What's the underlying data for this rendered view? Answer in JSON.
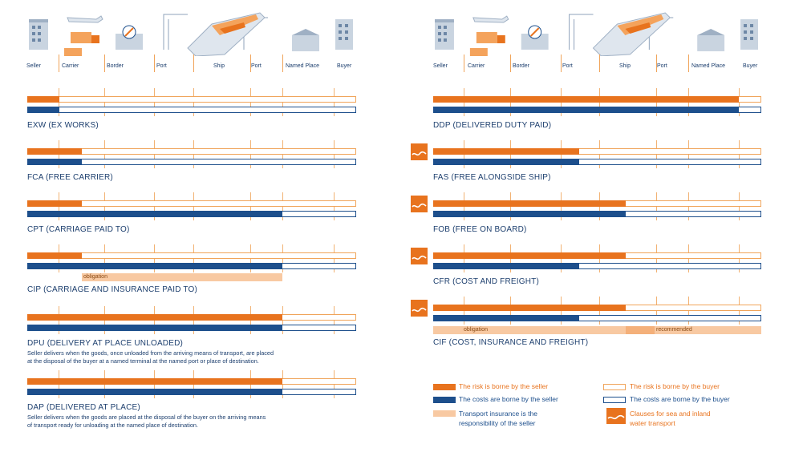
{
  "stages": [
    "Seller",
    "Carrier",
    "Border",
    "Port",
    "Ship",
    "Port",
    "Named Place",
    "Buyer"
  ],
  "colors": {
    "risk": "#e8731e",
    "cost": "#1d4f8c",
    "risk_outline": "#f0a45a",
    "cost_outline": "#1d4f8c",
    "insurance": "#f8c9a2"
  },
  "left_terms": [
    {
      "code": "exw",
      "title": "EXW (EX WORKS)",
      "risk_to": "Seller",
      "cost_to": "Seller",
      "insurance": null,
      "desc": []
    },
    {
      "code": "fca",
      "title": "FCA (FREE CARRIER)",
      "risk_to": "Carrier",
      "cost_to": "Carrier",
      "insurance": null,
      "desc": []
    },
    {
      "code": "cpt",
      "title": "CPT (CARRIAGE PAID TO)",
      "risk_to": "Carrier",
      "cost_to": "Named Place",
      "insurance": null,
      "desc": []
    },
    {
      "code": "cip",
      "title": "CIP (CARRIAGE AND INSURANCE PAID TO)",
      "risk_to": "Carrier",
      "cost_to": "Named Place",
      "insurance": {
        "label": "obligation"
      },
      "desc": []
    },
    {
      "code": "dpu",
      "title": "DPU (DELIVERY AT PLACE UNLOADED)",
      "risk_to": "Named Place",
      "cost_to": "Named Place",
      "insurance": null,
      "desc": [
        "Seller delivers when the goods, once unloaded from the arriving means of transport, are placed",
        "at the disposal of the buyer at a named terminal at the named port or place of destination."
      ]
    },
    {
      "code": "dap",
      "title": "DAP (DELIVERED AT PLACE)",
      "risk_to": "Named Place",
      "cost_to": "Named Place",
      "insurance": null,
      "desc": [
        "Seller delivers when the goods are placed at the disposal of the buyer on the arriving means",
        "of transport ready for unloading at the named place of destination."
      ]
    }
  ],
  "right_terms": [
    {
      "code": "ddp",
      "title": "DDP (DELIVERED DUTY PAID)",
      "risk_to": "Buyer",
      "cost_to": "Buyer",
      "sea": false,
      "insurance": null
    },
    {
      "code": "fas",
      "title": "FAS (FREE ALONGSIDE SHIP)",
      "risk_to": "Port",
      "cost_to": "Port",
      "sea": true,
      "insurance": null
    },
    {
      "code": "fob",
      "title": "FOB (FREE ON BOARD)",
      "risk_to": "Ship",
      "cost_to": "Ship",
      "sea": true,
      "insurance": null
    },
    {
      "code": "cfr",
      "title": "CFR (COST AND FREIGHT)",
      "risk_to": "Ship",
      "cost_to": "Port",
      "sea": true,
      "insurance": null
    },
    {
      "code": "cif",
      "title": "CIF (COST, INSURANCE AND FREIGHT)",
      "risk_to": "Ship",
      "cost_to": "Port",
      "sea": true,
      "insurance": {
        "obligation": "obligation",
        "recommended": "recommended"
      }
    }
  ],
  "legend": {
    "risk_seller": "The risk is borne by the seller",
    "cost_seller": "The costs are borne by the seller",
    "insurance_seller_1": "Transport insurance is the",
    "insurance_seller_2": "responsibility of the seller",
    "risk_buyer": "The risk is borne by the buyer",
    "cost_buyer": "The costs are borne by the buyer",
    "sea_1": "Clauses for sea and inland",
    "sea_2": "water transport"
  }
}
